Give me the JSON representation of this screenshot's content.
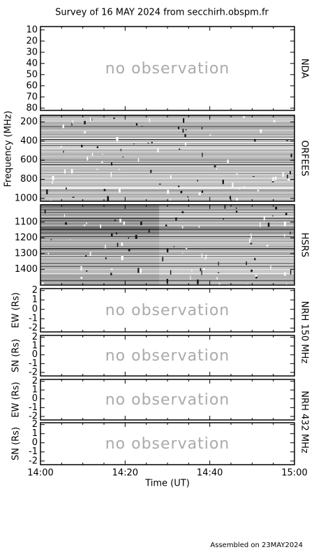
{
  "chart_data": {
    "type": "radio-survey",
    "title": "Survey of 16 MAY 2024 from secchirh.obspm.fr",
    "x_label": "Time (UT)",
    "xticks": [
      "14:00",
      "14:20",
      "14:40",
      "15:00"
    ],
    "y_label": "Frequency (MHz)",
    "footer": "Assembled on 23MAY2024",
    "panels": [
      {
        "side_label": "NDA",
        "status": "no observation",
        "ylim": [
          82,
          7
        ],
        "yticks": [
          10,
          20,
          30,
          40,
          50,
          60,
          70,
          80
        ]
      },
      {
        "side_label": "ORFEES",
        "ylim": [
          1030,
          130
        ],
        "yticks": [
          200,
          400,
          600,
          800,
          1000
        ]
      },
      {
        "side_label": "HSRS",
        "ylim": [
          1500,
          990
        ],
        "yticks": [
          1100,
          1200,
          1300,
          1400
        ]
      },
      {
        "side_label": "NRH 150 MHz",
        "y_label": "EW (Rs)",
        "status": "no observation",
        "ylim": [
          -2.4,
          2.2
        ],
        "yticks": [
          2,
          1,
          0,
          -1,
          -2
        ]
      },
      {
        "y_label": "SN (Rs)",
        "status": "no observation",
        "ylim": [
          -2.4,
          2.2
        ],
        "yticks": [
          2,
          1,
          0,
          -1,
          -2
        ]
      },
      {
        "side_label": "NRH 432 MHz",
        "y_label": "EW (Rs)",
        "status": "no observation",
        "ylim": [
          -2.4,
          2.2
        ],
        "yticks": [
          2,
          1,
          0,
          -1,
          -2
        ]
      },
      {
        "y_label": "SN (Rs)",
        "status": "no observation",
        "ylim": [
          -2.4,
          2.2
        ],
        "yticks": [
          2,
          1,
          0,
          -1,
          -2
        ]
      }
    ]
  }
}
